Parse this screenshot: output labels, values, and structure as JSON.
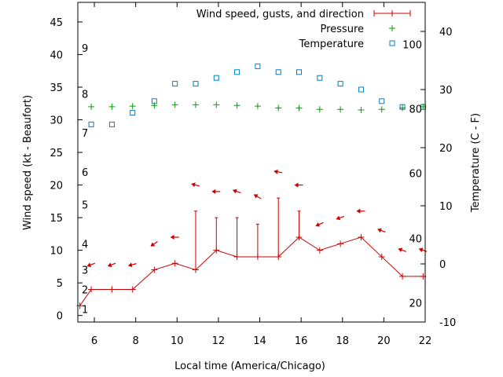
{
  "chart_data": {
    "type": "line",
    "xlabel": "Local time (America/Chicago)",
    "ylabel_left": "Wind speed (kt - Beaufort)",
    "ylabel_right": "Temperature (C - F)",
    "xlim": [
      5.2,
      22
    ],
    "ylim_left": [
      -1,
      48
    ],
    "ylim_right": [
      -10,
      45
    ],
    "x_ticks": [
      6,
      8,
      10,
      12,
      14,
      16,
      18,
      20,
      22
    ],
    "y_ticks_left": [
      0,
      5,
      10,
      15,
      20,
      25,
      30,
      35,
      40,
      45
    ],
    "y_ticks_right": [
      -10,
      0,
      10,
      20,
      30,
      40
    ],
    "beaufort_labels": [
      {
        "label": "1",
        "value": 1
      },
      {
        "label": "2",
        "value": 4
      },
      {
        "label": "3",
        "value": 7
      },
      {
        "label": "4",
        "value": 11
      },
      {
        "label": "5",
        "value": 17
      },
      {
        "label": "6",
        "value": 22
      },
      {
        "label": "7",
        "value": 28
      },
      {
        "label": "8",
        "value": 34
      },
      {
        "label": "9",
        "value": 41
      }
    ],
    "fahrenheit_labels": [
      {
        "label": "20",
        "value": -6.7
      },
      {
        "label": "40",
        "value": 4.4
      },
      {
        "label": "60",
        "value": 15.6
      },
      {
        "label": "80",
        "value": 26.7
      },
      {
        "label": "100",
        "value": 37.8
      }
    ],
    "legend_position": "top-right",
    "series": [
      {
        "name": "Wind speed, gusts, and direction",
        "color": "#cc0000",
        "x": [
          5.3,
          5.85,
          6.85,
          7.85,
          8.9,
          9.9,
          10.9,
          11.9,
          12.9,
          13.9,
          14.9,
          15.9,
          16.9,
          17.9,
          18.9,
          19.9,
          20.9,
          21.9
        ],
        "values": [
          1.5,
          4,
          4,
          4,
          7,
          8,
          7,
          10,
          9,
          9,
          9,
          12,
          10,
          11,
          12,
          9,
          6,
          6
        ],
        "gusts": [
          null,
          null,
          null,
          null,
          null,
          null,
          16,
          15,
          15,
          14,
          18,
          16,
          null,
          null,
          null,
          null,
          null,
          null
        ],
        "direction_arrows": [
          {
            "x": 5.85,
            "y": 7.8,
            "angle": 160
          },
          {
            "x": 6.85,
            "y": 7.8,
            "angle": 160
          },
          {
            "x": 7.85,
            "y": 7.8,
            "angle": 165
          },
          {
            "x": 8.9,
            "y": 11,
            "angle": 145
          },
          {
            "x": 9.9,
            "y": 12,
            "angle": 180
          },
          {
            "x": 10.9,
            "y": 20,
            "angle": 195
          },
          {
            "x": 11.9,
            "y": 19,
            "angle": 180
          },
          {
            "x": 12.9,
            "y": 19,
            "angle": 200
          },
          {
            "x": 13.9,
            "y": 18.2,
            "angle": 210
          },
          {
            "x": 14.9,
            "y": 22,
            "angle": 190
          },
          {
            "x": 15.9,
            "y": 20,
            "angle": 180
          },
          {
            "x": 16.9,
            "y": 14,
            "angle": 155
          },
          {
            "x": 17.9,
            "y": 15,
            "angle": 160
          },
          {
            "x": 18.9,
            "y": 16,
            "angle": 180
          },
          {
            "x": 19.9,
            "y": 13,
            "angle": 200
          },
          {
            "x": 20.9,
            "y": 10,
            "angle": 200
          },
          {
            "x": 21.9,
            "y": 10,
            "angle": 200
          }
        ]
      },
      {
        "name": "Pressure",
        "color": "#00a000",
        "x": [
          5.85,
          6.85,
          7.85,
          8.9,
          9.9,
          10.9,
          11.9,
          12.9,
          13.9,
          14.9,
          15.9,
          16.9,
          17.9,
          18.9,
          19.9,
          20.9,
          21.9
        ],
        "values": [
          32,
          32,
          32.1,
          32.2,
          32.3,
          32.3,
          32.3,
          32.2,
          32.1,
          31.8,
          31.8,
          31.6,
          31.6,
          31.5,
          31.6,
          31.8,
          32
        ]
      },
      {
        "name": "Temperature",
        "color": "#0080c0",
        "x": [
          5.85,
          6.85,
          7.85,
          8.9,
          9.9,
          10.9,
          11.9,
          12.9,
          13.9,
          14.9,
          15.9,
          16.9,
          17.9,
          18.9,
          19.9,
          20.9,
          21.9
        ],
        "values": [
          24,
          24,
          26,
          28,
          31,
          31,
          32,
          33,
          34,
          33,
          33,
          32,
          31,
          30,
          28,
          27,
          27
        ]
      }
    ]
  }
}
